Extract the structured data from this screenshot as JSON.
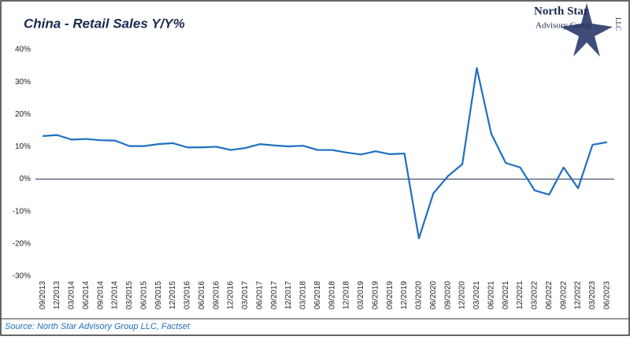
{
  "chart_data": {
    "type": "line",
    "title": "China - Retail Sales Y/Y%",
    "source": "Source: North Star Advisory Group LLC, Factset",
    "logo": {
      "name": "North Star",
      "sub": "Advisory Group",
      "suffix": "LLC"
    },
    "categories": [
      "09/2013",
      "12/2013",
      "03/2014",
      "06/2014",
      "09/2014",
      "12/2014",
      "03/2015",
      "06/2015",
      "09/2015",
      "12/2015",
      "03/2016",
      "06/2016",
      "09/2016",
      "12/2016",
      "03/2017",
      "06/2017",
      "09/2017",
      "12/2017",
      "03/2018",
      "06/2018",
      "09/2018",
      "12/2018",
      "03/2019",
      "06/2019",
      "09/2019",
      "12/2019",
      "03/2020",
      "06/2020",
      "09/2020",
      "12/2020",
      "03/2021",
      "06/2021",
      "09/2021",
      "12/2021",
      "03/2022",
      "06/2022",
      "09/2022",
      "12/2022",
      "03/2023",
      "06/2023"
    ],
    "values": [
      13.3,
      13.6,
      12.2,
      12.4,
      12.0,
      11.9,
      10.2,
      10.2,
      10.8,
      11.1,
      9.8,
      9.8,
      10.0,
      9.0,
      9.6,
      10.8,
      10.4,
      10.1,
      10.3,
      9.0,
      9.0,
      8.2,
      7.6,
      8.6,
      7.7,
      7.9,
      -18.3,
      -4.4,
      0.9,
      4.6,
      34.3,
      14.0,
      5.0,
      3.6,
      -3.5,
      -4.8,
      3.6,
      -2.8,
      10.6,
      11.4
    ],
    "color": "#1f6fbf",
    "ylim": [
      -30,
      40
    ],
    "yticks": [
      {
        "value": -30,
        "label": "-30%"
      },
      {
        "value": -20,
        "label": "-20%"
      },
      {
        "value": -10,
        "label": "-10%"
      },
      {
        "value": 0,
        "label": "0%"
      },
      {
        "value": 10,
        "label": "10%"
      },
      {
        "value": 20,
        "label": "20%"
      },
      {
        "value": 30,
        "label": "30%"
      },
      {
        "value": 40,
        "label": "40%"
      }
    ],
    "grid": false
  }
}
